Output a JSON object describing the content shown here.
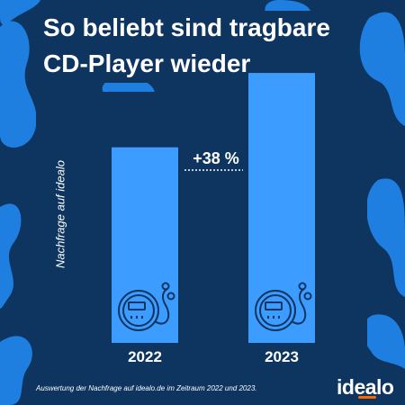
{
  "title_line_1": "So beliebt sind tragbare",
  "title_line_2": "CD-Player wieder",
  "footnote": "Auswertung der Nachfrage auf idealo.de im Zeitraum 2022 und 2023.",
  "brand": "idealo",
  "colors": {
    "background": "#0d3560",
    "blob": "#1f7fe0",
    "bar": "#3d9cff",
    "text": "#ffffff",
    "brand_accent": "#ff6600"
  },
  "bar_icon": "portable-cd-player-icon",
  "chart_data": {
    "type": "bar",
    "categories": [
      "2022",
      "2023"
    ],
    "values": [
      100,
      138
    ],
    "ylabel": "Nachfrage auf idealo",
    "xlabel": "",
    "ylim": [
      0,
      150
    ],
    "annotation": "+38 %",
    "grid": false,
    "legend": false
  }
}
